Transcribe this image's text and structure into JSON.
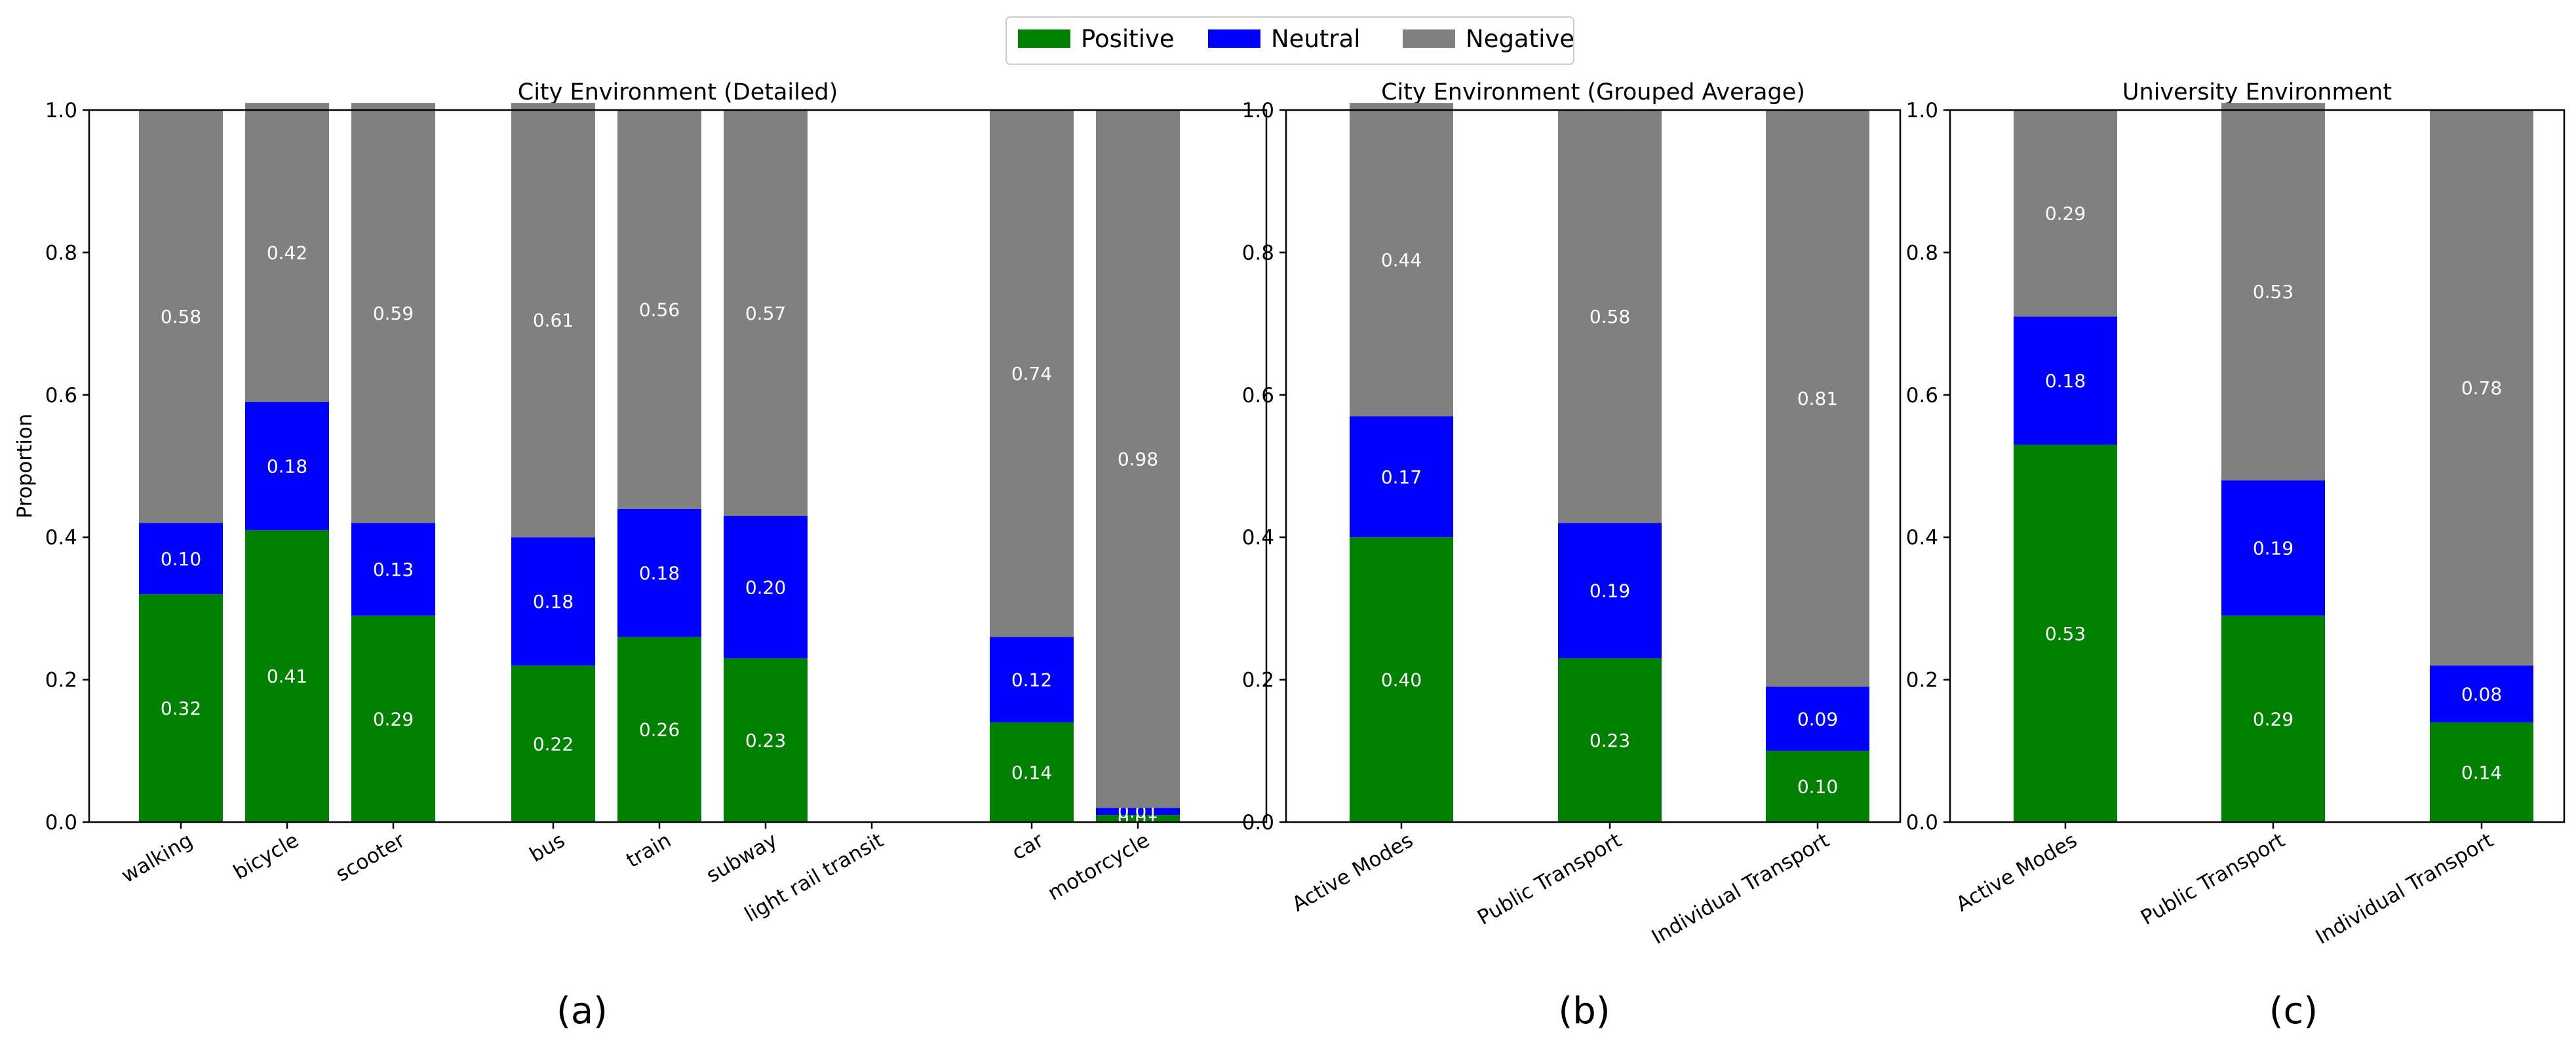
{
  "legend": [
    {
      "name": "Positive",
      "color": "#008000"
    },
    {
      "name": "Neutral",
      "color": "#0000ff"
    },
    {
      "name": "Negative",
      "color": "#808080"
    }
  ],
  "y_axis_label": "Proportion",
  "panel_labels": [
    "(a)",
    "(b)",
    "(c)"
  ],
  "chart_data": [
    {
      "type": "bar",
      "stacked": true,
      "title": "City Environment (Detailed)",
      "ylabel": "Proportion",
      "ylim": [
        0,
        1
      ],
      "yticks": [
        "0.0",
        "0.2",
        "0.4",
        "0.6",
        "0.8",
        "1.0"
      ],
      "categories": [
        "walking",
        "bicycle",
        "scooter",
        "",
        "bus",
        "train",
        "subway",
        "light rail transit",
        "",
        "car",
        "motorcycle"
      ],
      "series": [
        {
          "name": "Positive",
          "color": "#008000",
          "values": [
            0.32,
            0.41,
            0.29,
            null,
            0.22,
            0.26,
            0.23,
            0.0,
            null,
            0.14,
            0.01
          ]
        },
        {
          "name": "Neutral",
          "color": "#0000ff",
          "values": [
            0.1,
            0.18,
            0.13,
            null,
            0.18,
            0.18,
            0.2,
            0.0,
            null,
            0.12,
            0.01
          ]
        },
        {
          "name": "Negative",
          "color": "#808080",
          "values": [
            0.58,
            0.42,
            0.59,
            null,
            0.61,
            0.56,
            0.57,
            0.0,
            null,
            0.74,
            0.98
          ]
        }
      ]
    },
    {
      "type": "bar",
      "stacked": true,
      "title": "City Environment (Grouped Average)",
      "ylim": [
        0,
        1
      ],
      "yticks": [
        "0.0",
        "0.2",
        "0.4",
        "0.6",
        "0.8",
        "1.0"
      ],
      "categories": [
        "Active Modes",
        "Public Transport",
        "Individual Transport"
      ],
      "series": [
        {
          "name": "Positive",
          "color": "#008000",
          "values": [
            0.4,
            0.23,
            0.1
          ]
        },
        {
          "name": "Neutral",
          "color": "#0000ff",
          "values": [
            0.17,
            0.19,
            0.09
          ]
        },
        {
          "name": "Negative",
          "color": "#808080",
          "values": [
            0.44,
            0.58,
            0.81
          ]
        }
      ]
    },
    {
      "type": "bar",
      "stacked": true,
      "title": "University Environment",
      "ylim": [
        0,
        1
      ],
      "yticks": [
        "0.0",
        "0.2",
        "0.4",
        "0.6",
        "0.8",
        "1.0"
      ],
      "categories": [
        "Active Modes",
        "Public Transport",
        "Individual Transport"
      ],
      "series": [
        {
          "name": "Positive",
          "color": "#008000",
          "values": [
            0.53,
            0.29,
            0.14
          ]
        },
        {
          "name": "Neutral",
          "color": "#0000ff",
          "values": [
            0.18,
            0.19,
            0.08
          ]
        },
        {
          "name": "Negative",
          "color": "#808080",
          "values": [
            0.29,
            0.53,
            0.78
          ]
        }
      ]
    }
  ]
}
